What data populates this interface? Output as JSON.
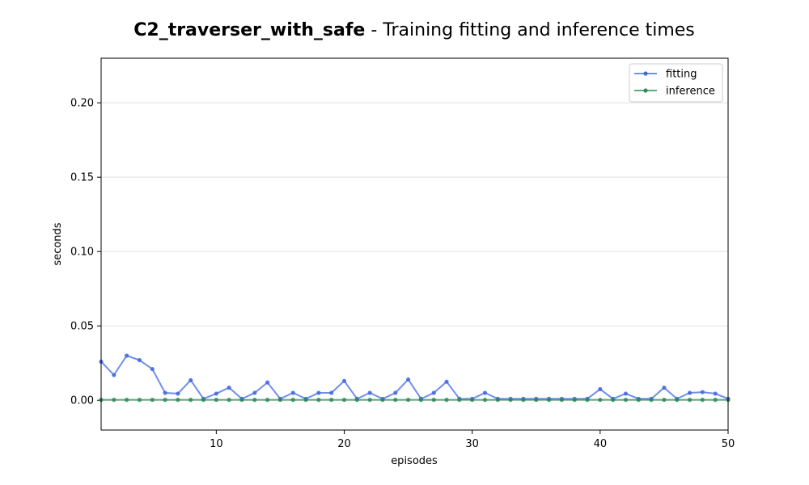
{
  "chart_data": {
    "type": "line",
    "title_bold": "C2_traverser_with_safe",
    "title_rest": " - Training fitting and inference times",
    "xlabel": "episodes",
    "ylabel": "seconds",
    "xlim": [
      1,
      50
    ],
    "ylim": [
      -0.02,
      0.23
    ],
    "xticks": [
      10,
      20,
      30,
      40,
      50
    ],
    "yticks": [
      0.0,
      0.05,
      0.1,
      0.15,
      0.2
    ],
    "ytick_labels": [
      "0.00",
      "0.05",
      "0.10",
      "0.15",
      "0.20"
    ],
    "grid": "y",
    "legend": "top-right",
    "x": [
      1,
      2,
      3,
      4,
      5,
      6,
      7,
      8,
      9,
      10,
      11,
      12,
      13,
      14,
      15,
      16,
      17,
      18,
      19,
      20,
      21,
      22,
      23,
      24,
      25,
      26,
      27,
      28,
      29,
      30,
      31,
      32,
      33,
      34,
      35,
      36,
      37,
      38,
      39,
      40,
      41,
      42,
      43,
      44,
      45,
      46,
      47,
      48,
      49,
      50
    ],
    "series": [
      {
        "name": "fitting",
        "color": "#4169e1",
        "values": [
          0.026,
          0.017,
          0.03,
          0.027,
          0.021,
          0.005,
          0.0045,
          0.0135,
          0.001,
          0.0045,
          0.0085,
          0.001,
          0.005,
          0.012,
          0.001,
          0.005,
          0.001,
          0.005,
          0.005,
          0.013,
          0.001,
          0.005,
          0.001,
          0.005,
          0.014,
          0.001,
          0.005,
          0.0125,
          0.001,
          0.001,
          0.005,
          0.001,
          0.001,
          0.001,
          0.001,
          0.001,
          0.001,
          0.001,
          0.001,
          0.0075,
          0.001,
          0.0045,
          0.001,
          0.001,
          0.0085,
          0.001,
          0.005,
          0.0055,
          0.0045,
          0.001
        ]
      },
      {
        "name": "inference",
        "color": "#2e8b57",
        "values": [
          0.0003,
          0.0003,
          0.0003,
          0.0003,
          0.0003,
          0.0003,
          0.0003,
          0.0003,
          0.0003,
          0.0003,
          0.0003,
          0.0003,
          0.0003,
          0.0003,
          0.0003,
          0.0003,
          0.0003,
          0.0003,
          0.0003,
          0.0003,
          0.0003,
          0.0003,
          0.0003,
          0.0003,
          0.0003,
          0.0003,
          0.0003,
          0.0003,
          0.0003,
          0.0003,
          0.0003,
          0.0003,
          0.0003,
          0.0003,
          0.0003,
          0.0003,
          0.0003,
          0.0003,
          0.0003,
          0.0003,
          0.0003,
          0.0003,
          0.0003,
          0.0003,
          0.0003,
          0.0003,
          0.0003,
          0.0003,
          0.0003,
          0.0003
        ]
      }
    ]
  }
}
